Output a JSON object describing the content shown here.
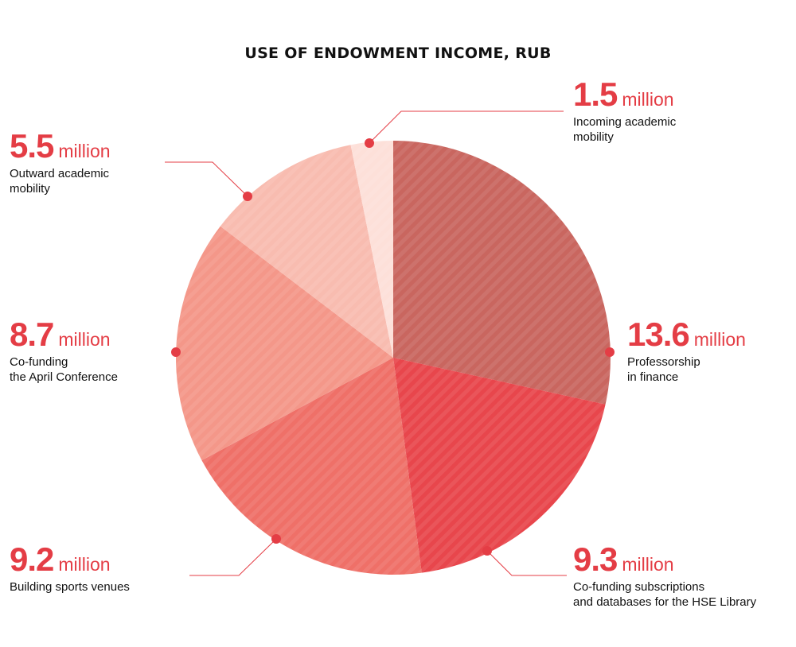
{
  "title": "USE OF ENDOWMENT INCOME, RUB",
  "colors": {
    "accent": "#e43d45",
    "leader": "#e43d45"
  },
  "chart_data": {
    "type": "pie",
    "title": "USE OF ENDOWMENT INCOME, RUB",
    "unit": "million",
    "slices": [
      {
        "value_label": "13.6",
        "value": 13.6,
        "unit": "million",
        "description": "Professorship\nin finance",
        "color": "#c9665f"
      },
      {
        "value_label": "9.3",
        "value": 9.3,
        "unit": "million",
        "description": "Co-funding subscriptions\nand databases for the HSE Library",
        "color": "#e8464c"
      },
      {
        "value_label": "9.2",
        "value": 9.2,
        "unit": "million",
        "description": "Building sports venues",
        "color": "#ef7068"
      },
      {
        "value_label": "8.7",
        "value": 8.7,
        "unit": "million",
        "description": "Co-funding\nthe April Conference",
        "color": "#f49789"
      },
      {
        "value_label": "5.5",
        "value": 5.5,
        "unit": "million",
        "description": "Outward academic\nmobility",
        "color": "#f8bcb0"
      },
      {
        "value_label": "1.5",
        "value": 1.5,
        "unit": "million",
        "description": "Incoming academic\nmobility",
        "color": "#fde0d9"
      }
    ]
  }
}
